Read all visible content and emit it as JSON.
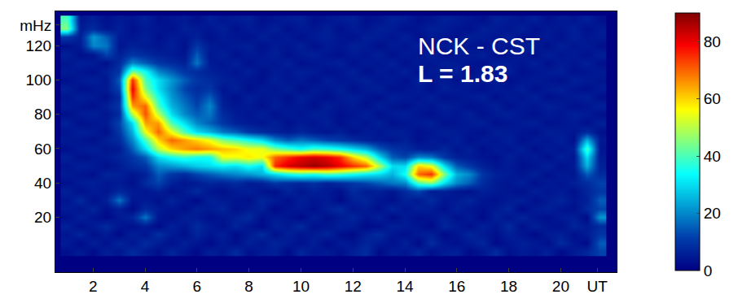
{
  "chart_data": {
    "type": "heatmap",
    "grid": false,
    "x": [
      1.0,
      1.5,
      2.0,
      2.5,
      3.0,
      3.5,
      4.0,
      4.5,
      5.0,
      5.5,
      6.0,
      6.5,
      7.0,
      7.5,
      8.0,
      8.5,
      9.0,
      9.5,
      10.0,
      10.5,
      11.0,
      11.5,
      12.0,
      12.5,
      13.0,
      13.5,
      14.0,
      14.5,
      15.0,
      15.5,
      16.0,
      16.5,
      17.0,
      17.5,
      18.0,
      18.5,
      19.0,
      19.5,
      20.0,
      20.5,
      21.0,
      21.5
    ],
    "y": [
      0,
      5,
      10,
      15,
      20,
      25,
      30,
      35,
      40,
      45,
      50,
      55,
      60,
      65,
      70,
      75,
      80,
      85,
      90,
      95,
      100,
      105,
      110,
      115,
      120,
      125,
      130,
      135
    ],
    "cells": [
      [
        3,
        5,
        2,
        6,
        4,
        8,
        5,
        3,
        7,
        4,
        2,
        6,
        4,
        8,
        3,
        5,
        6,
        2,
        7,
        4,
        5,
        3,
        6,
        8,
        2,
        5,
        4,
        7,
        3,
        5,
        6,
        2,
        4,
        8,
        3,
        5,
        4,
        6,
        2,
        5,
        7,
        12
      ],
      [
        5,
        2,
        6,
        3,
        7,
        4,
        8,
        5,
        3,
        6,
        4,
        2,
        5,
        3,
        6,
        4,
        7,
        5,
        3,
        6,
        2,
        5,
        4,
        7,
        5,
        3,
        6,
        2,
        8,
        4,
        3,
        5,
        7,
        2,
        4,
        6,
        5,
        3,
        8,
        4,
        2,
        15
      ],
      [
        4,
        7,
        3,
        5,
        2,
        6,
        4,
        9,
        5,
        3,
        7,
        4,
        6,
        2,
        5,
        8,
        3,
        6,
        4,
        5,
        7,
        3,
        2,
        6,
        8,
        4,
        3,
        5,
        6,
        2,
        4,
        7,
        5,
        3,
        6,
        4,
        2,
        5,
        6,
        3,
        5,
        10
      ],
      [
        6,
        3,
        5,
        8,
        4,
        3,
        5,
        2,
        6,
        4,
        8,
        5,
        3,
        7,
        4,
        2,
        6,
        5,
        8,
        3,
        4,
        6,
        5,
        2,
        3,
        6,
        5,
        4,
        2,
        7,
        5,
        3,
        6,
        4,
        8,
        3,
        6,
        4,
        3,
        7,
        5,
        8
      ],
      [
        3,
        6,
        4,
        2,
        5,
        7,
        18,
        4,
        3,
        6,
        5,
        3,
        4,
        6,
        8,
        3,
        5,
        4,
        2,
        6,
        3,
        5,
        7,
        4,
        6,
        2,
        5,
        3,
        4,
        6,
        3,
        5,
        2,
        6,
        4,
        7,
        4,
        3,
        5,
        6,
        2,
        22
      ],
      [
        5,
        4,
        7,
        3,
        6,
        2,
        8,
        5,
        4,
        3,
        6,
        5,
        7,
        3,
        5,
        6,
        2,
        4,
        5,
        3,
        6,
        8,
        4,
        5,
        3,
        7,
        4,
        6,
        5,
        3,
        6,
        4,
        3,
        5,
        7,
        2,
        5,
        6,
        4,
        3,
        8,
        12
      ],
      [
        4,
        8,
        3,
        6,
        18,
        4,
        5,
        3,
        7,
        4,
        2,
        6,
        5,
        4,
        3,
        7,
        5,
        3,
        6,
        4,
        5,
        2,
        6,
        7,
        4,
        3,
        6,
        5,
        8,
        4,
        5,
        7,
        4,
        3,
        5,
        6,
        3,
        5,
        7,
        4,
        6,
        15
      ],
      [
        6,
        3,
        5,
        4,
        7,
        5,
        4,
        6,
        3,
        5,
        8,
        4,
        3,
        5,
        6,
        4,
        3,
        7,
        4,
        6,
        5,
        3,
        8,
        5,
        6,
        4,
        8,
        12,
        5,
        6,
        4,
        3,
        6,
        5,
        4,
        3,
        6,
        4,
        5,
        3,
        7,
        10
      ],
      [
        3,
        5,
        6,
        4,
        5,
        3,
        8,
        12,
        6,
        4,
        5,
        7,
        6,
        8,
        5,
        6,
        10,
        8,
        7,
        9,
        6,
        8,
        10,
        12,
        15,
        18,
        20,
        40,
        45,
        30,
        20,
        15,
        8,
        5,
        4,
        6,
        3,
        5,
        4,
        6,
        8,
        12
      ],
      [
        5,
        4,
        3,
        7,
        6,
        4,
        6,
        15,
        10,
        8,
        12,
        15,
        18,
        20,
        22,
        25,
        30,
        35,
        38,
        36,
        40,
        38,
        35,
        32,
        30,
        25,
        35,
        70,
        75,
        45,
        25,
        20,
        10,
        6,
        5,
        4,
        6,
        3,
        5,
        4,
        15,
        8
      ],
      [
        4,
        6,
        5,
        3,
        5,
        8,
        10,
        20,
        22,
        25,
        28,
        30,
        32,
        30,
        35,
        30,
        75,
        82,
        85,
        88,
        85,
        80,
        75,
        70,
        50,
        30,
        30,
        60,
        55,
        30,
        15,
        10,
        6,
        4,
        5,
        3,
        4,
        6,
        3,
        5,
        25,
        6
      ],
      [
        6,
        3,
        4,
        5,
        7,
        10,
        15,
        30,
        35,
        38,
        35,
        35,
        55,
        55,
        58,
        55,
        70,
        75,
        80,
        82,
        80,
        75,
        60,
        50,
        30,
        15,
        12,
        20,
        18,
        10,
        6,
        5,
        4,
        3,
        6,
        4,
        5,
        3,
        6,
        4,
        30,
        5
      ],
      [
        3,
        5,
        6,
        4,
        5,
        15,
        30,
        50,
        60,
        65,
        68,
        65,
        62,
        60,
        55,
        55,
        45,
        40,
        35,
        40,
        38,
        35,
        30,
        25,
        15,
        10,
        8,
        6,
        5,
        7,
        4,
        6,
        3,
        5,
        4,
        6,
        3,
        5,
        4,
        6,
        40,
        4
      ],
      [
        5,
        4,
        3,
        6,
        8,
        20,
        40,
        60,
        70,
        65,
        60,
        55,
        45,
        40,
        35,
        30,
        20,
        15,
        18,
        15,
        12,
        10,
        8,
        6,
        5,
        4,
        6,
        3,
        5,
        4,
        6,
        3,
        5,
        4,
        6,
        3,
        5,
        4,
        6,
        3,
        25,
        5
      ],
      [
        4,
        6,
        5,
        3,
        10,
        25,
        55,
        70,
        55,
        40,
        30,
        25,
        18,
        15,
        10,
        8,
        6,
        5,
        7,
        5,
        4,
        6,
        3,
        5,
        4,
        6,
        5,
        3,
        4,
        6,
        5,
        4,
        3,
        6,
        5,
        4,
        3,
        6,
        5,
        4,
        8,
        3
      ],
      [
        6,
        3,
        4,
        5,
        12,
        30,
        65,
        65,
        40,
        30,
        20,
        15,
        10,
        6,
        5,
        4,
        6,
        3,
        5,
        4,
        6,
        3,
        5,
        4,
        6,
        3,
        4,
        5,
        6,
        3,
        4,
        5,
        6,
        3,
        4,
        5,
        6,
        3,
        4,
        5,
        3,
        6
      ],
      [
        3,
        5,
        6,
        4,
        8,
        50,
        72,
        50,
        30,
        20,
        15,
        18,
        8,
        5,
        4,
        6,
        3,
        5,
        4,
        6,
        5,
        3,
        4,
        6,
        3,
        5,
        6,
        4,
        3,
        5,
        4,
        6,
        3,
        5,
        6,
        4,
        3,
        5,
        4,
        6,
        5,
        3
      ],
      [
        5,
        4,
        3,
        6,
        10,
        65,
        70,
        40,
        25,
        18,
        12,
        20,
        6,
        4,
        5,
        3,
        6,
        4,
        5,
        3,
        6,
        4,
        5,
        3,
        6,
        4,
        3,
        5,
        4,
        6,
        5,
        3,
        4,
        6,
        3,
        5,
        4,
        6,
        5,
        3,
        4,
        6
      ],
      [
        4,
        6,
        5,
        3,
        8,
        75,
        55,
        35,
        22,
        15,
        10,
        15,
        5,
        3,
        6,
        4,
        5,
        3,
        6,
        4,
        3,
        5,
        6,
        4,
        3,
        6,
        5,
        4,
        6,
        3,
        4,
        5,
        6,
        3,
        5,
        4,
        6,
        3,
        4,
        5,
        6,
        3
      ],
      [
        6,
        3,
        4,
        5,
        12,
        80,
        45,
        30,
        20,
        12,
        8,
        10,
        4,
        6,
        3,
        5,
        4,
        6,
        3,
        5,
        4,
        6,
        3,
        5,
        6,
        3,
        4,
        5,
        3,
        6,
        5,
        4,
        3,
        5,
        4,
        6,
        3,
        5,
        6,
        4,
        3,
        5
      ],
      [
        3,
        5,
        6,
        4,
        15,
        75,
        40,
        30,
        22,
        15,
        10,
        8,
        6,
        5,
        4,
        3,
        6,
        4,
        5,
        3,
        6,
        4,
        5,
        6,
        4,
        5,
        3,
        6,
        4,
        5,
        3,
        6,
        4,
        5,
        3,
        4,
        5,
        4,
        3,
        6,
        5,
        4
      ],
      [
        5,
        4,
        3,
        6,
        10,
        45,
        35,
        20,
        15,
        10,
        8,
        6,
        5,
        4,
        6,
        3,
        5,
        4,
        6,
        5,
        3,
        4,
        6,
        3,
        5,
        4,
        6,
        3,
        5,
        4,
        6,
        3,
        5,
        4,
        6,
        3,
        4,
        5,
        6,
        3,
        4,
        5
      ],
      [
        4,
        6,
        5,
        3,
        8,
        20,
        15,
        10,
        8,
        6,
        18,
        5,
        4,
        6,
        3,
        5,
        4,
        6,
        3,
        4,
        5,
        6,
        3,
        5,
        4,
        6,
        3,
        5,
        4,
        6,
        5,
        4,
        3,
        6,
        5,
        4,
        6,
        3,
        5,
        4,
        6,
        3
      ],
      [
        6,
        3,
        4,
        12,
        6,
        10,
        8,
        6,
        5,
        4,
        15,
        4,
        6,
        3,
        5,
        4,
        6,
        3,
        5,
        6,
        4,
        3,
        5,
        4,
        6,
        3,
        5,
        4,
        6,
        3,
        4,
        5,
        6,
        3,
        4,
        5,
        3,
        6,
        4,
        5,
        3,
        6
      ],
      [
        3,
        5,
        20,
        18,
        4,
        6,
        5,
        4,
        6,
        3,
        10,
        5,
        4,
        5,
        6,
        3,
        5,
        4,
        6,
        3,
        5,
        4,
        6,
        5,
        3,
        5,
        4,
        6,
        3,
        5,
        6,
        4,
        3,
        5,
        4,
        6,
        5,
        3,
        6,
        4,
        5,
        3
      ],
      [
        10,
        6,
        22,
        15,
        5,
        4,
        6,
        3,
        5,
        4,
        6,
        3,
        5,
        4,
        3,
        6,
        4,
        5,
        3,
        5,
        6,
        4,
        3,
        6,
        5,
        4,
        6,
        3,
        5,
        4,
        3,
        6,
        5,
        4,
        6,
        3,
        4,
        5,
        3,
        6,
        4,
        5
      ],
      [
        45,
        5,
        8,
        4,
        6,
        3,
        5,
        4,
        3,
        6,
        5,
        4,
        6,
        3,
        5,
        4,
        6,
        3,
        5,
        4,
        6,
        3,
        5,
        4,
        6,
        5,
        3,
        4,
        6,
        5,
        4,
        3,
        6,
        5,
        4,
        6,
        3,
        5,
        4,
        6,
        3,
        5
      ],
      [
        40,
        4,
        6,
        3,
        5,
        4,
        6,
        3,
        4,
        5,
        3,
        6,
        4,
        5,
        6,
        3,
        4,
        5,
        6,
        3,
        4,
        5,
        6,
        3,
        4,
        6,
        5,
        3,
        4,
        6,
        5,
        4,
        3,
        6,
        5,
        4,
        6,
        3,
        5,
        4,
        6,
        3
      ]
    ],
    "xlim": [
      0.55,
      22.15
    ],
    "xticks": [
      2,
      4,
      6,
      8,
      10,
      12,
      14,
      16,
      18,
      20,
      {
        "value": 21.4,
        "label": "UT"
      }
    ],
    "ylim": [
      -12,
      140
    ],
    "yticks": [
      20,
      40,
      60,
      80,
      100,
      120,
      {
        "value": 132,
        "label": "mHz"
      }
    ],
    "colorbar": {
      "range": [
        0,
        90
      ],
      "ticks": [
        0,
        20,
        40,
        60,
        80
      ]
    },
    "annotations": [
      {
        "text": "NCK - CST",
        "x": 14.45,
        "y": 120
      },
      {
        "text": "L = 1.83",
        "x": 14.45,
        "y": 104
      }
    ]
  }
}
